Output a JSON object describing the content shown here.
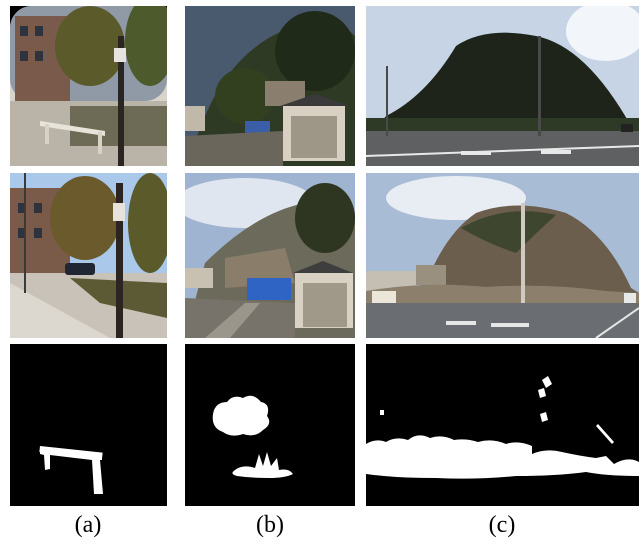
{
  "captions": {
    "a": "(a)",
    "b": "(b)",
    "c": "(c)"
  }
}
